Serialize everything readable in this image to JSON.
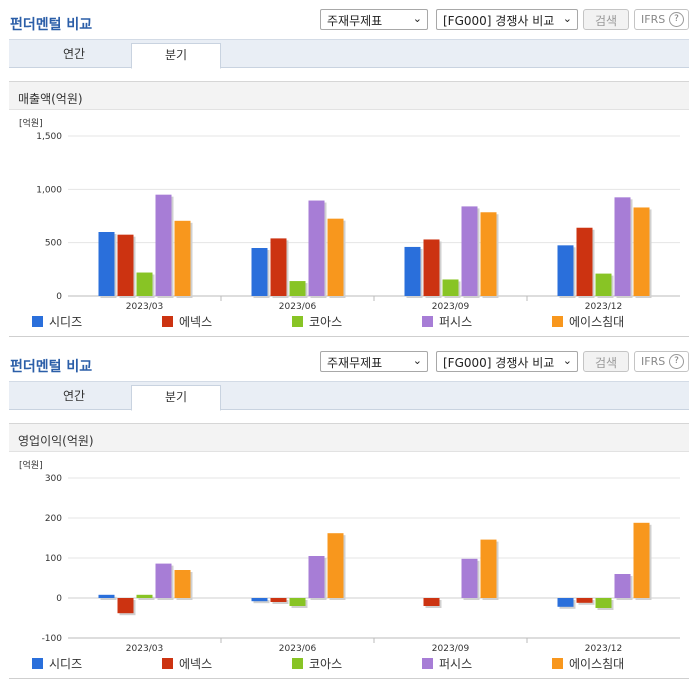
{
  "colors": {
    "title_blue": "#2b5ea8",
    "tab_bg": "#e9eef5"
  },
  "panels": [
    {
      "header": {
        "title": "펀더멘털 비교",
        "select_statement": "주재무제표",
        "select_compare": "[FG000] 경쟁사 비교",
        "search_label": "검색",
        "ifrs_label": "IFRS",
        "help_glyph": "?"
      },
      "tabs": [
        {
          "label": "연간",
          "active": false
        },
        {
          "label": "분기",
          "active": true
        }
      ],
      "chart_title": "매출액(억원)"
    },
    {
      "header": {
        "title": "펀더멘털 비교",
        "select_statement": "주재무제표",
        "select_compare": "[FG000] 경쟁사 비교",
        "search_label": "검색",
        "ifrs_label": "IFRS",
        "help_glyph": "?"
      },
      "tabs": [
        {
          "label": "연간",
          "active": false
        },
        {
          "label": "분기",
          "active": true
        }
      ],
      "chart_title": "영업이익(억원)"
    }
  ],
  "chart_data": [
    {
      "type": "bar",
      "title": "매출액(억원)",
      "unit_label": "[억원]",
      "categories": [
        "2023/03",
        "2023/06",
        "2023/09",
        "2023/12"
      ],
      "ylim": [
        0,
        1500
      ],
      "yticks": [
        0,
        500,
        1000,
        1500
      ],
      "ytick_labels": [
        "0",
        "500",
        "1,000",
        "1,500"
      ],
      "grid": true,
      "legend_position": "bottom",
      "series": [
        {
          "name": "시디즈",
          "color": "#2a6fdb",
          "values": [
            600,
            450,
            460,
            475
          ]
        },
        {
          "name": "에넥스",
          "color": "#cc3311",
          "values": [
            575,
            540,
            530,
            640
          ]
        },
        {
          "name": "코아스",
          "color": "#88c425",
          "values": [
            220,
            140,
            155,
            210
          ]
        },
        {
          "name": "퍼시스",
          "color": "#a77dd6",
          "values": [
            950,
            895,
            840,
            925
          ]
        },
        {
          "name": "에이스침대",
          "color": "#f8971d",
          "values": [
            705,
            725,
            785,
            830
          ]
        }
      ]
    },
    {
      "type": "bar",
      "title": "영업이익(억원)",
      "unit_label": "[억원]",
      "categories": [
        "2023/03",
        "2023/06",
        "2023/09",
        "2023/12"
      ],
      "ylim": [
        -100,
        300
      ],
      "yticks": [
        -100,
        0,
        100,
        200,
        300
      ],
      "ytick_labels": [
        "-100",
        "0",
        "100",
        "200",
        "300"
      ],
      "grid": true,
      "legend_position": "bottom",
      "series": [
        {
          "name": "시디즈",
          "color": "#2a6fdb",
          "values": [
            8,
            -8,
            0,
            -22
          ]
        },
        {
          "name": "에넥스",
          "color": "#cc3311",
          "values": [
            -38,
            -10,
            -20,
            -12
          ]
        },
        {
          "name": "코아스",
          "color": "#88c425",
          "values": [
            8,
            -20,
            0,
            -25
          ]
        },
        {
          "name": "퍼시스",
          "color": "#a77dd6",
          "values": [
            86,
            105,
            98,
            60
          ]
        },
        {
          "name": "에이스침대",
          "color": "#f8971d",
          "values": [
            70,
            162,
            146,
            188
          ]
        }
      ]
    }
  ]
}
